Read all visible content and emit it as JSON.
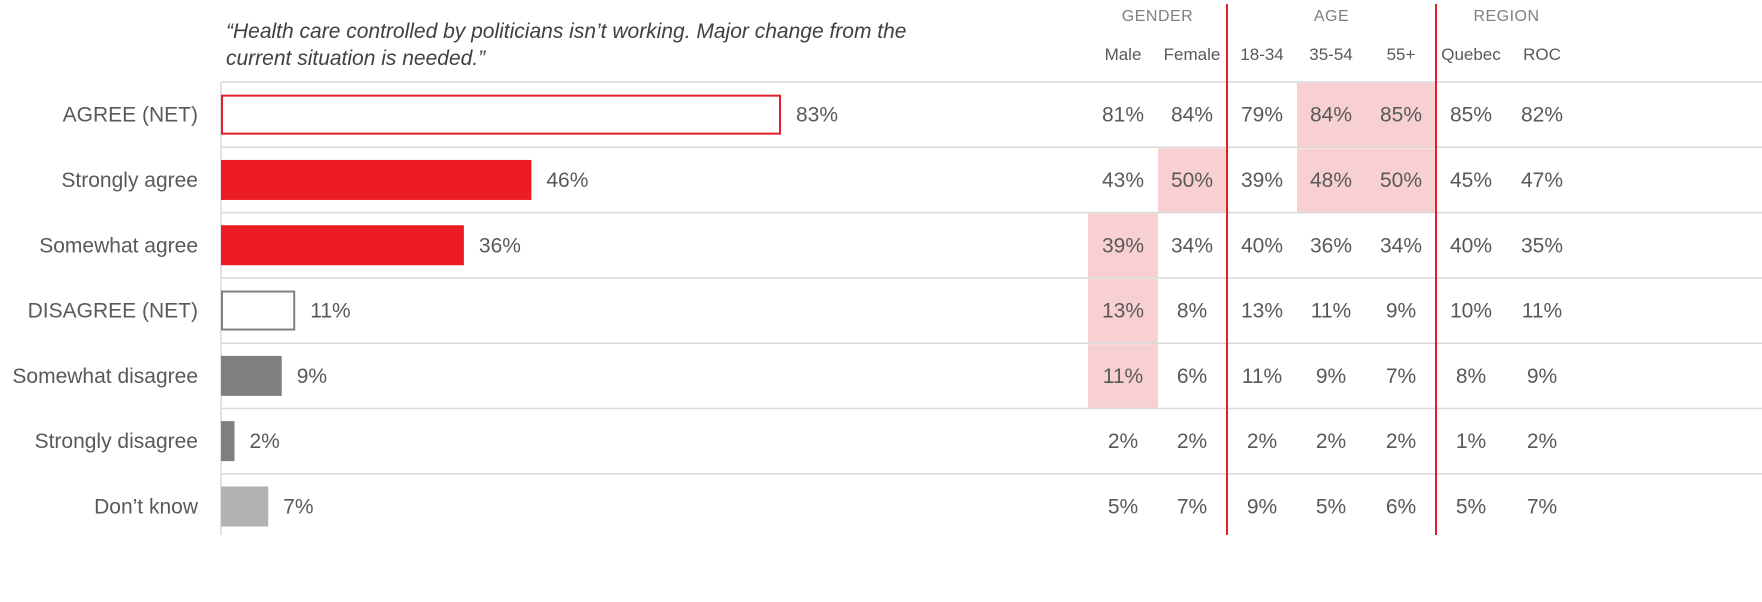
{
  "title": "“Health care controlled by politicians isn’t working. Major change from the current situation is needed.”",
  "colors": {
    "accent_red": "#ED1C24",
    "outline_red": "#E0202A",
    "dark_gray": "#7F7F7F",
    "light_gray": "#B2B2B2",
    "outline_gray": "#808080",
    "highlight_pink": "#F8D0D2",
    "gridline": "#D9D9D9",
    "text": "#595959"
  },
  "chart_data": {
    "type": "bar",
    "orientation": "horizontal",
    "title": "“Health care controlled by politicians isn’t working. Major change from the current situation is needed.”",
    "categories": [
      "AGREE (NET)",
      "Strongly agree",
      "Somewhat agree",
      "DISAGREE (NET)",
      "Somewhat disagree",
      "Strongly disagree",
      "Don’t know"
    ],
    "values": [
      83,
      46,
      36,
      11,
      9,
      2,
      7
    ],
    "value_labels": [
      "83%",
      "46%",
      "36%",
      "11%",
      "9%",
      "2%",
      "7%"
    ],
    "bar_styles": [
      "outline-red",
      "red",
      "red",
      "outline-gray",
      "dark-gray",
      "dark-gray",
      "light-gray"
    ],
    "xlim": [
      0,
      100
    ],
    "unit": "%",
    "grid": true,
    "table": {
      "groups": [
        {
          "name": "GENDER",
          "columns": [
            "Male",
            "Female"
          ]
        },
        {
          "name": "AGE",
          "columns": [
            "18-34",
            "35-54",
            "55+"
          ]
        },
        {
          "name": "REGION",
          "columns": [
            "Quebec",
            "ROC"
          ]
        }
      ],
      "columns": [
        "Male",
        "Female",
        "18-34",
        "35-54",
        "55+",
        "Quebec",
        "ROC"
      ],
      "rows": [
        [
          "81%",
          "84%",
          "79%",
          "84%",
          "85%",
          "85%",
          "82%"
        ],
        [
          "43%",
          "50%",
          "39%",
          "48%",
          "50%",
          "45%",
          "47%"
        ],
        [
          "39%",
          "34%",
          "40%",
          "36%",
          "34%",
          "40%",
          "35%"
        ],
        [
          "13%",
          "8%",
          "13%",
          "11%",
          "9%",
          "10%",
          "11%"
        ],
        [
          "11%",
          "6%",
          "11%",
          "9%",
          "7%",
          "8%",
          "9%"
        ],
        [
          "2%",
          "2%",
          "2%",
          "2%",
          "2%",
          "1%",
          "2%"
        ],
        [
          "5%",
          "7%",
          "9%",
          "5%",
          "6%",
          "5%",
          "7%"
        ]
      ],
      "highlighted": [
        [
          0,
          3
        ],
        [
          0,
          4
        ],
        [
          1,
          1
        ],
        [
          1,
          3
        ],
        [
          1,
          4
        ],
        [
          2,
          0
        ],
        [
          3,
          0
        ],
        [
          4,
          0
        ]
      ]
    }
  }
}
